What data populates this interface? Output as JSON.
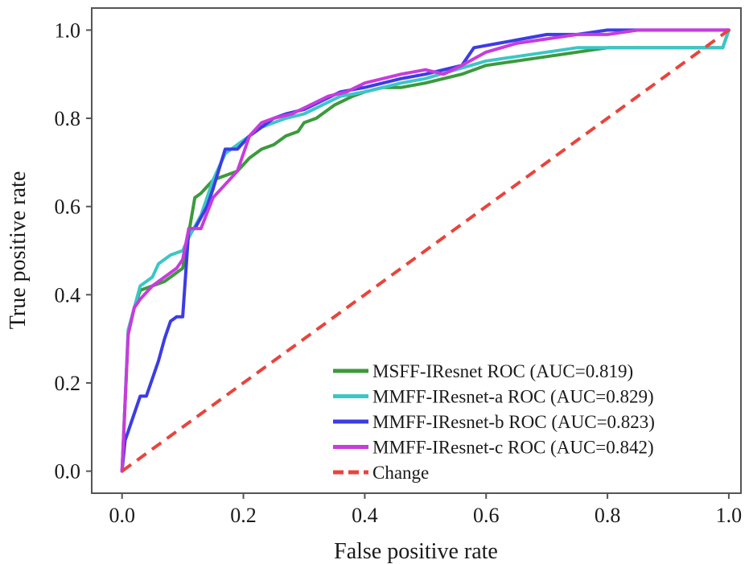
{
  "chart_data": {
    "type": "line",
    "xlabel": "False positive rate",
    "ylabel": "True positive rate",
    "xlim": [
      -0.05,
      1.02
    ],
    "ylim": [
      -0.05,
      1.05
    ],
    "xticks": [
      "0.0",
      "0.2",
      "0.4",
      "0.6",
      "0.8",
      "1.0"
    ],
    "yticks": [
      "0.0",
      "0.2",
      "0.4",
      "0.6",
      "0.8",
      "1.0"
    ],
    "grid": false,
    "legend_position": "bottom-right",
    "series": [
      {
        "name": "MSFF-IResnet ROC (AUC=0.819)",
        "color": "#3c9a3c",
        "dashed": false,
        "x": [
          0,
          0.01,
          0.02,
          0.03,
          0.05,
          0.07,
          0.09,
          0.1,
          0.12,
          0.13,
          0.15,
          0.17,
          0.19,
          0.21,
          0.23,
          0.25,
          0.27,
          0.29,
          0.3,
          0.32,
          0.35,
          0.38,
          0.4,
          0.43,
          0.46,
          0.5,
          0.53,
          0.56,
          0.6,
          0.65,
          0.7,
          0.75,
          0.8,
          0.85,
          0.9,
          0.99,
          1.0
        ],
        "y": [
          0,
          0.31,
          0.37,
          0.41,
          0.42,
          0.43,
          0.45,
          0.46,
          0.62,
          0.63,
          0.66,
          0.67,
          0.68,
          0.71,
          0.73,
          0.74,
          0.76,
          0.77,
          0.79,
          0.8,
          0.83,
          0.85,
          0.86,
          0.87,
          0.87,
          0.88,
          0.89,
          0.9,
          0.92,
          0.93,
          0.94,
          0.95,
          0.96,
          0.96,
          0.96,
          0.96,
          1.0
        ]
      },
      {
        "name": "MMFF-IResnet-a ROC (AUC=0.829)",
        "color": "#3cc6c6",
        "dashed": false,
        "x": [
          0,
          0.01,
          0.02,
          0.03,
          0.05,
          0.06,
          0.08,
          0.1,
          0.11,
          0.13,
          0.15,
          0.17,
          0.19,
          0.21,
          0.23,
          0.25,
          0.27,
          0.3,
          0.33,
          0.36,
          0.4,
          0.43,
          0.46,
          0.5,
          0.55,
          0.6,
          0.65,
          0.7,
          0.75,
          0.8,
          0.85,
          0.9,
          0.99,
          1.0
        ],
        "y": [
          0,
          0.32,
          0.37,
          0.42,
          0.44,
          0.47,
          0.49,
          0.5,
          0.53,
          0.58,
          0.66,
          0.72,
          0.74,
          0.76,
          0.78,
          0.79,
          0.8,
          0.81,
          0.83,
          0.85,
          0.86,
          0.87,
          0.88,
          0.89,
          0.91,
          0.93,
          0.94,
          0.95,
          0.96,
          0.96,
          0.96,
          0.96,
          0.96,
          1.0
        ]
      },
      {
        "name": "MMFF-IResnet-b ROC (AUC=0.823)",
        "color": "#3c3ce6",
        "dashed": false,
        "x": [
          0,
          0.005,
          0.01,
          0.02,
          0.03,
          0.04,
          0.06,
          0.07,
          0.08,
          0.09,
          0.1,
          0.11,
          0.12,
          0.14,
          0.15,
          0.17,
          0.19,
          0.21,
          0.23,
          0.25,
          0.27,
          0.3,
          0.33,
          0.36,
          0.4,
          0.43,
          0.46,
          0.5,
          0.53,
          0.56,
          0.58,
          0.62,
          0.66,
          0.7,
          0.75,
          0.8,
          0.84,
          1.0
        ],
        "y": [
          0,
          0.07,
          0.09,
          0.13,
          0.17,
          0.17,
          0.25,
          0.3,
          0.34,
          0.35,
          0.35,
          0.55,
          0.55,
          0.6,
          0.64,
          0.73,
          0.73,
          0.76,
          0.78,
          0.8,
          0.81,
          0.82,
          0.84,
          0.86,
          0.87,
          0.88,
          0.89,
          0.9,
          0.91,
          0.92,
          0.96,
          0.97,
          0.98,
          0.99,
          0.99,
          1.0,
          1.0,
          1.0
        ]
      },
      {
        "name": "MMFF-IResnet-c ROC (AUC=0.842)",
        "color": "#c83cdc",
        "dashed": false,
        "x": [
          0,
          0.01,
          0.02,
          0.03,
          0.05,
          0.07,
          0.09,
          0.1,
          0.11,
          0.13,
          0.15,
          0.17,
          0.19,
          0.21,
          0.23,
          0.25,
          0.28,
          0.31,
          0.34,
          0.37,
          0.4,
          0.43,
          0.46,
          0.5,
          0.53,
          0.56,
          0.6,
          0.65,
          0.7,
          0.75,
          0.8,
          0.85,
          1.0
        ],
        "y": [
          0,
          0.31,
          0.37,
          0.39,
          0.42,
          0.44,
          0.46,
          0.48,
          0.55,
          0.55,
          0.62,
          0.65,
          0.68,
          0.76,
          0.79,
          0.8,
          0.81,
          0.83,
          0.85,
          0.86,
          0.88,
          0.89,
          0.9,
          0.91,
          0.9,
          0.92,
          0.95,
          0.97,
          0.98,
          0.99,
          0.99,
          1.0,
          1.0
        ]
      },
      {
        "name": "Change",
        "color": "#e8443c",
        "dashed": true,
        "x": [
          0,
          1
        ],
        "y": [
          0,
          1
        ]
      }
    ]
  }
}
